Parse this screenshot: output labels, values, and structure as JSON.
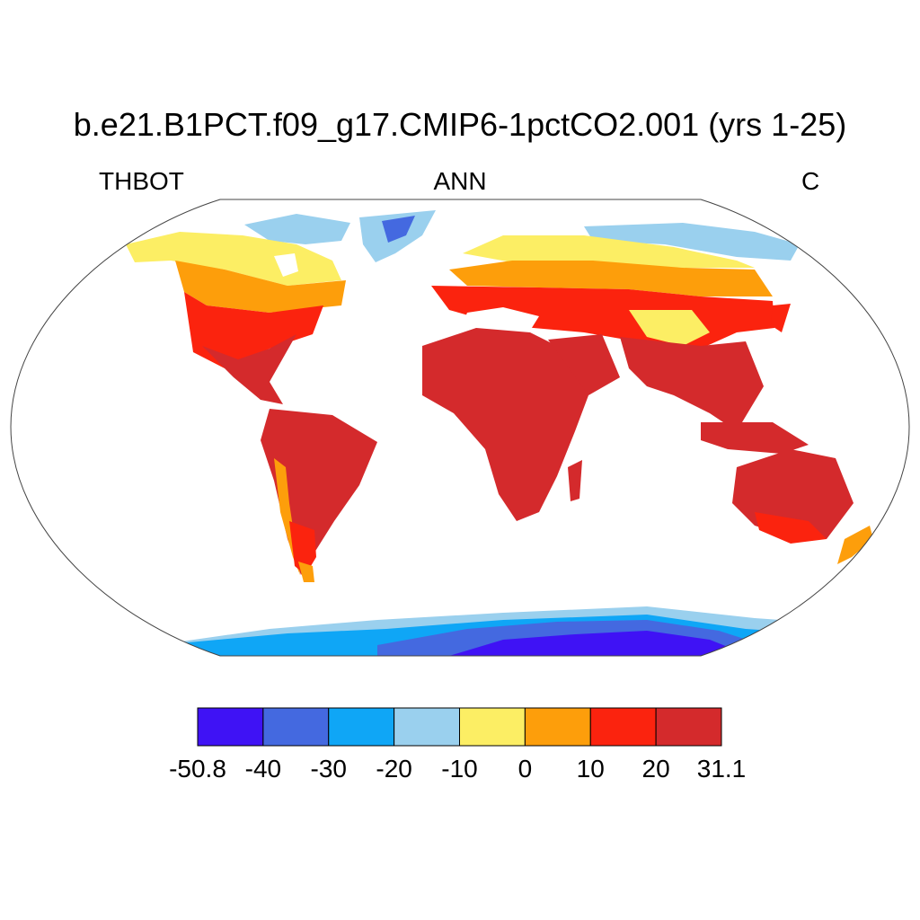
{
  "title": "b.e21.B1PCT.f09_g17.CMIP6-1pctCO2.001 (yrs 1-25)",
  "left_label": "THBOT",
  "center_label": "ANN",
  "right_label": "C",
  "colorbar": {
    "colors": [
      "#3f12f5",
      "#4469e0",
      "#0fa6f6",
      "#9ad0ee",
      "#fcee64",
      "#fd9e0b",
      "#fb230e",
      "#d42a2c"
    ],
    "ticks": [
      "-50.8",
      "-40",
      "-30",
      "-20",
      "-10",
      "0",
      "10",
      "20",
      "31.1"
    ]
  }
}
